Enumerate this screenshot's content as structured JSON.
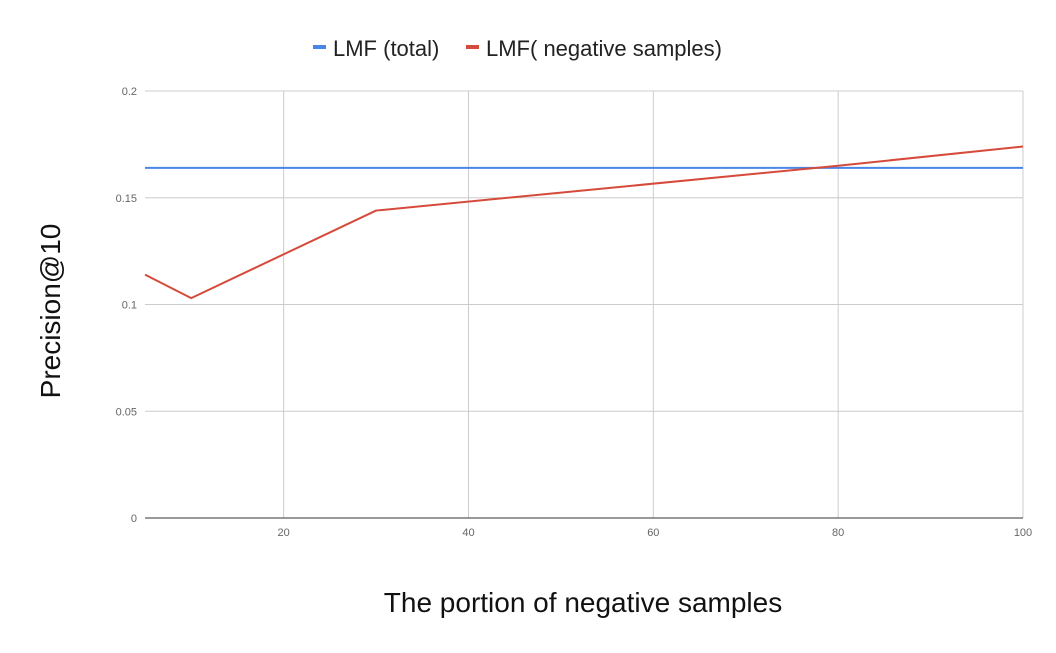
{
  "chart_data": {
    "type": "line",
    "xlabel": "The portion of negative samples",
    "ylabel": "Precision@10",
    "xlim": [
      5,
      100
    ],
    "ylim": [
      0,
      0.2
    ],
    "x_ticks": [
      20,
      40,
      60,
      80,
      100
    ],
    "y_ticks": [
      0,
      0.05,
      0.1,
      0.15,
      0.2
    ],
    "y_tick_labels": [
      "0",
      "0.05",
      "0.1",
      "0.15",
      "0.2"
    ],
    "grid": true,
    "legend_position": "top-center",
    "series": [
      {
        "name": "LMF (total)",
        "color": "#4a86e8",
        "x": [
          5,
          100
        ],
        "y": [
          0.164,
          0.164
        ]
      },
      {
        "name": "LMF( negative samples)",
        "color": "#d64a3b",
        "x": [
          5,
          10,
          30,
          80,
          100
        ],
        "y": [
          0.114,
          0.103,
          0.144,
          0.165,
          0.174
        ]
      }
    ]
  }
}
